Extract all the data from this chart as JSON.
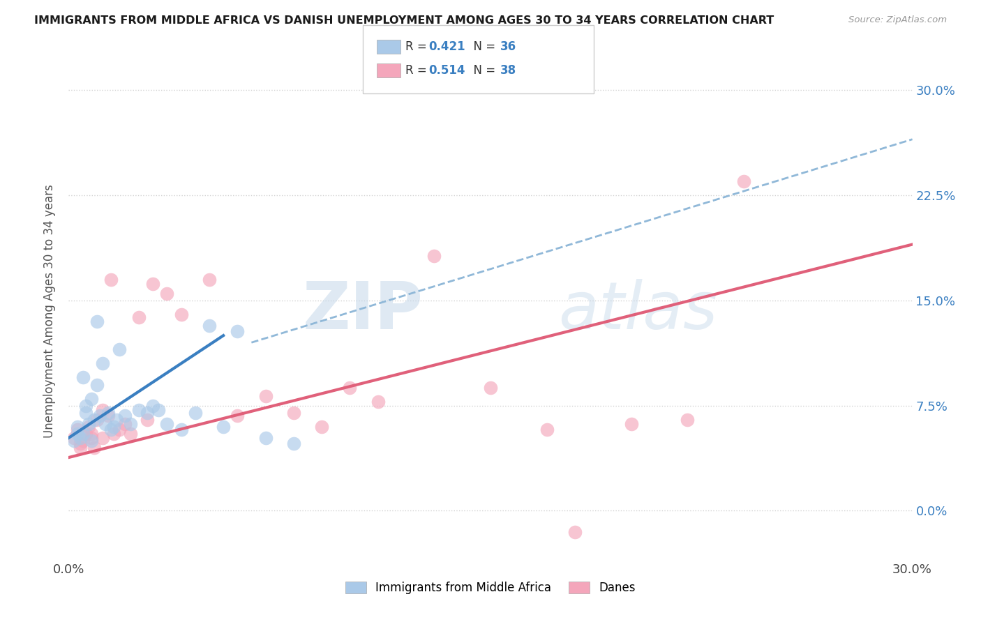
{
  "title": "IMMIGRANTS FROM MIDDLE AFRICA VS DANISH UNEMPLOYMENT AMONG AGES 30 TO 34 YEARS CORRELATION CHART",
  "source": "Source: ZipAtlas.com",
  "ylabel": "Unemployment Among Ages 30 to 34 years",
  "ytick_vals": [
    0.0,
    7.5,
    15.0,
    22.5,
    30.0
  ],
  "xlim": [
    0,
    30
  ],
  "ylim": [
    -3.5,
    32
  ],
  "legend_r1": "0.421",
  "legend_n1": "36",
  "legend_r2": "0.514",
  "legend_n2": "38",
  "legend_label1": "Immigrants from Middle Africa",
  "legend_label2": "Danes",
  "color_blue": "#aac9e8",
  "color_pink": "#f4a6bb",
  "color_blue_line": "#3a7fc1",
  "color_pink_line": "#e0607a",
  "color_blue_text": "#3a7fc1",
  "color_dashed": "#90b8d8",
  "watermark_zip": "ZIP",
  "watermark_atlas": "atlas",
  "blue_scatter_x": [
    0.2,
    0.3,
    0.4,
    0.5,
    0.6,
    0.7,
    0.8,
    0.9,
    1.0,
    1.1,
    1.2,
    1.3,
    1.4,
    1.5,
    1.6,
    1.7,
    1.8,
    2.0,
    2.2,
    2.5,
    2.8,
    3.0,
    3.2,
    3.5,
    4.0,
    4.5,
    5.0,
    5.5,
    6.0,
    7.0,
    8.0,
    0.3,
    0.5,
    0.6,
    0.8,
    1.0
  ],
  "blue_scatter_y": [
    5.0,
    5.5,
    5.2,
    9.5,
    7.0,
    6.2,
    8.0,
    6.5,
    9.0,
    6.8,
    10.5,
    6.2,
    7.0,
    5.8,
    6.0,
    6.5,
    11.5,
    6.8,
    6.2,
    7.2,
    7.0,
    7.5,
    7.2,
    6.2,
    5.8,
    7.0,
    13.2,
    6.0,
    12.8,
    5.2,
    4.8,
    6.0,
    5.5,
    7.5,
    5.0,
    13.5
  ],
  "pink_scatter_x": [
    0.2,
    0.3,
    0.4,
    0.5,
    0.6,
    0.7,
    0.8,
    0.9,
    1.0,
    1.2,
    1.4,
    1.5,
    1.6,
    1.8,
    2.0,
    2.2,
    2.5,
    3.0,
    3.5,
    4.0,
    5.0,
    6.0,
    7.0,
    8.0,
    9.0,
    10.0,
    11.0,
    13.0,
    15.0,
    17.0,
    18.0,
    20.0,
    22.0,
    24.0,
    0.4,
    0.8,
    1.2,
    2.8
  ],
  "pink_scatter_y": [
    5.2,
    5.8,
    4.8,
    5.0,
    5.5,
    6.0,
    5.2,
    4.5,
    6.5,
    7.2,
    6.8,
    16.5,
    5.5,
    5.8,
    6.2,
    5.5,
    13.8,
    16.2,
    15.5,
    14.0,
    16.5,
    6.8,
    8.2,
    7.0,
    6.0,
    8.8,
    7.8,
    18.2,
    8.8,
    5.8,
    -1.5,
    6.2,
    6.5,
    23.5,
    4.5,
    5.5,
    5.2,
    6.5
  ],
  "blue_line_x": [
    0.0,
    5.5
  ],
  "blue_line_y": [
    5.2,
    12.5
  ],
  "pink_line_x": [
    0.0,
    30.0
  ],
  "pink_line_y": [
    3.8,
    19.0
  ],
  "dashed_line_x": [
    6.5,
    30.0
  ],
  "dashed_line_y": [
    12.0,
    26.5
  ],
  "background_color": "#ffffff",
  "grid_color": "#cccccc"
}
